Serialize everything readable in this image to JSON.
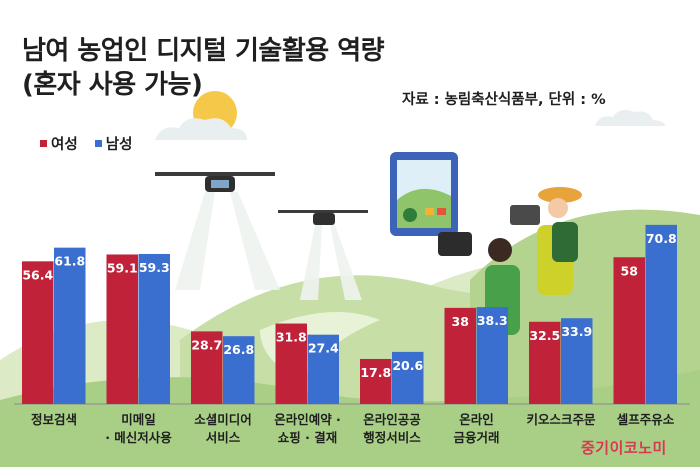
{
  "title_line1": "남여 농업인 디지털 기술활용 역량",
  "title_line2": "(혼자 사용 가능)",
  "source": "자료 : 농림축산식품부, 단위 : %",
  "publisher": "중기이코노미",
  "colors": {
    "female": "#c0223a",
    "male": "#3a6fd0",
    "label_text": "#ffffff",
    "background_hills": "#cfe2b4"
  },
  "chart_data": {
    "type": "bar",
    "title": "남여 농업인 디지털 기술활용 역량 (혼자 사용 가능)",
    "xlabel": "",
    "ylabel": "",
    "unit": "%",
    "ylim": [
      0,
      80
    ],
    "grid": false,
    "legend_position": "top-left",
    "categories": [
      [
        "정보검색"
      ],
      [
        "미메일",
        "· 메신저사용"
      ],
      [
        "소셜미디어",
        "서비스"
      ],
      [
        "온라인예약 ·",
        "쇼핑 · 결재"
      ],
      [
        "온라인공공",
        "행정서비스"
      ],
      [
        "온라인",
        "금융거래"
      ],
      [
        "키오스크주문"
      ],
      [
        "셀프주유소"
      ]
    ],
    "series": [
      {
        "name": "여성",
        "color": "#c0223a",
        "values": [
          56.4,
          59.1,
          28.7,
          31.8,
          17.8,
          38,
          32.5,
          58
        ]
      },
      {
        "name": "남성",
        "color": "#3a6fd0",
        "values": [
          61.8,
          59.3,
          26.8,
          27.4,
          20.6,
          38.3,
          33.9,
          70.8
        ]
      }
    ]
  }
}
